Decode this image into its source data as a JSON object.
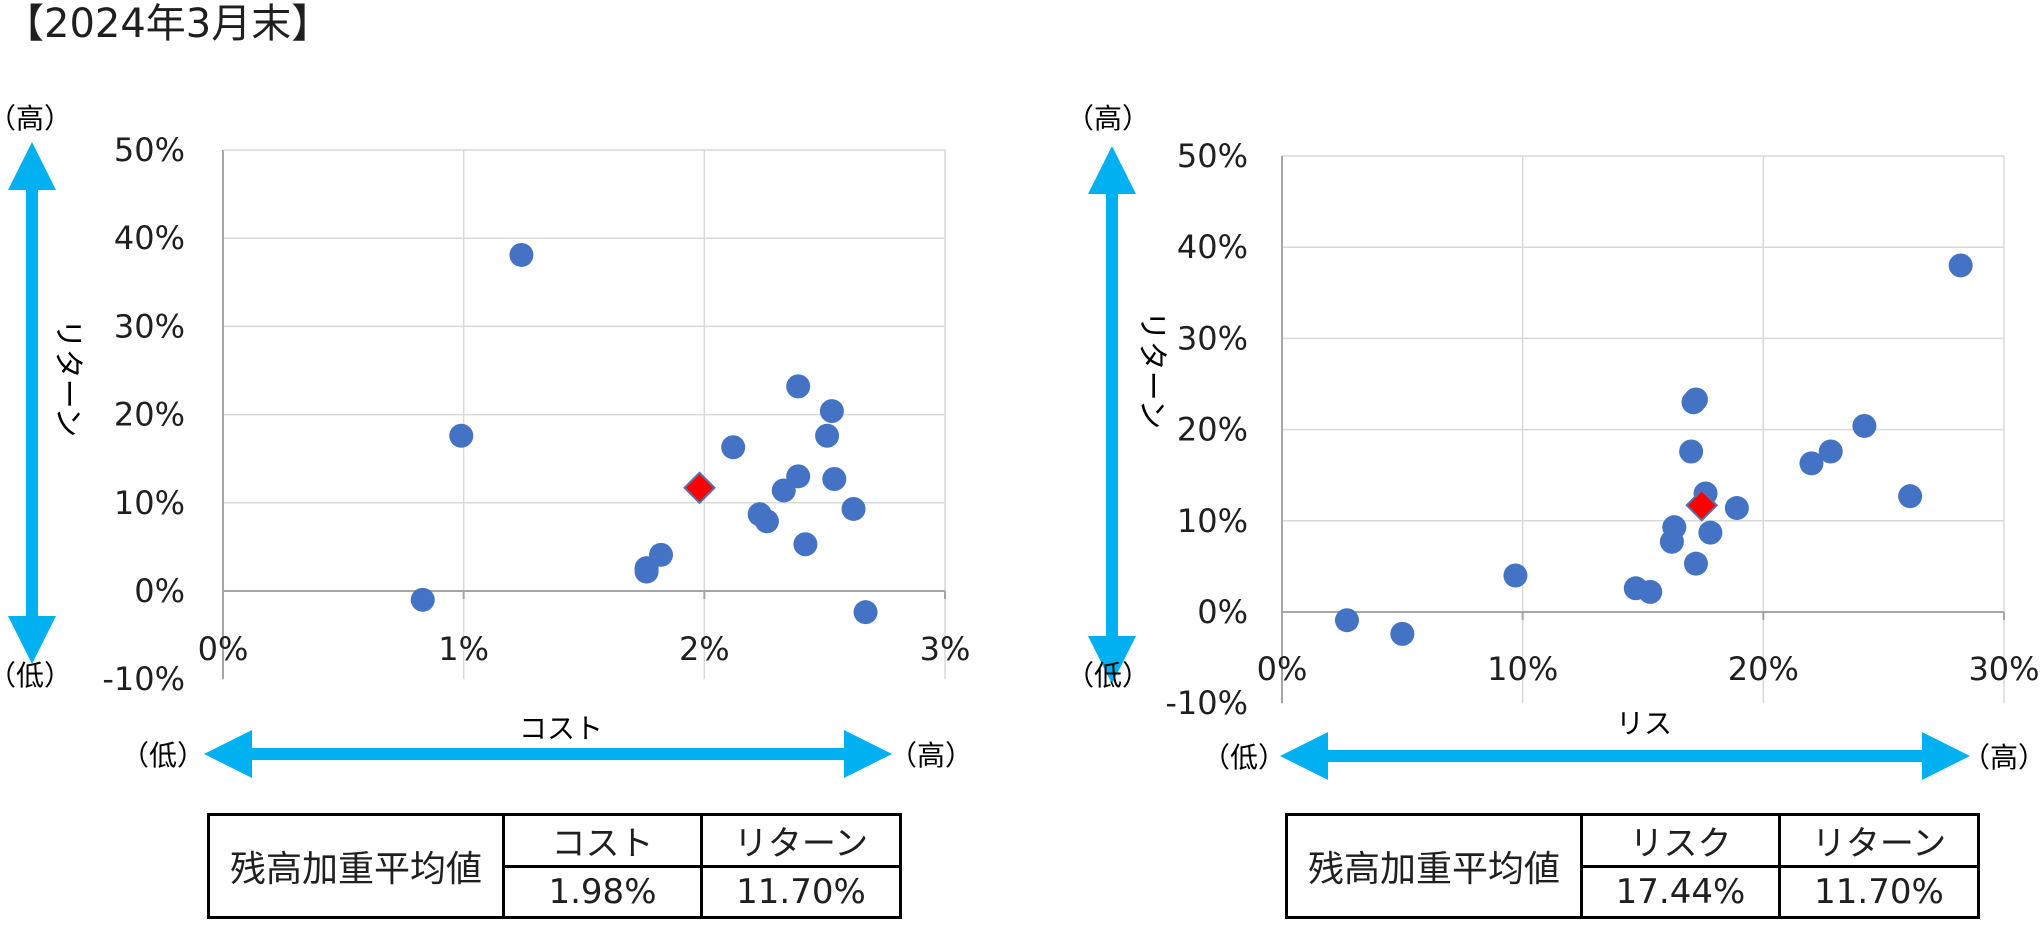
{
  "title": "【2024年3月末】",
  "direction_labels": {
    "high": "（高）",
    "low": "（低）"
  },
  "colors": {
    "points": "#4472c4",
    "average_marker": "#ff0000",
    "arrow": "#00b0f0",
    "grid": "#d9d9d9"
  },
  "chart_data": [
    {
      "type": "scatter",
      "title": "",
      "xlabel": "コスト",
      "ylabel": "リターン",
      "xlim": [
        0,
        0.03
      ],
      "ylim": [
        -0.1,
        0.5
      ],
      "x_ticks": [
        "0%",
        "1%",
        "2%",
        "3%"
      ],
      "y_ticks": [
        "50%",
        "40%",
        "30%",
        "20%",
        "10%",
        "0%",
        "-10%"
      ],
      "grid": true,
      "series": [
        {
          "values": [
            {
              "x": 0.0083,
              "y": -0.01
            },
            {
              "x": 0.0099,
              "y": 0.176
            },
            {
              "x": 0.0124,
              "y": 0.381
            },
            {
              "x": 0.0176,
              "y": 0.022
            },
            {
              "x": 0.0176,
              "y": 0.026
            },
            {
              "x": 0.0182,
              "y": 0.041
            },
            {
              "x": 0.0212,
              "y": 0.163
            },
            {
              "x": 0.0223,
              "y": 0.087
            },
            {
              "x": 0.0226,
              "y": 0.079
            },
            {
              "x": 0.0233,
              "y": 0.114
            },
            {
              "x": 0.0239,
              "y": 0.232
            },
            {
              "x": 0.0239,
              "y": 0.13
            },
            {
              "x": 0.0242,
              "y": 0.053
            },
            {
              "x": 0.0251,
              "y": 0.176
            },
            {
              "x": 0.0253,
              "y": 0.204
            },
            {
              "x": 0.0254,
              "y": 0.127
            },
            {
              "x": 0.0262,
              "y": 0.093
            },
            {
              "x": 0.0267,
              "y": -0.024
            }
          ]
        },
        {
          "marker": "diamond",
          "values": [
            {
              "x": 0.0198,
              "y": 0.117
            }
          ]
        }
      ]
    },
    {
      "type": "scatter",
      "title": "",
      "xlabel": "リス",
      "ylabel": "リターン",
      "xlim": [
        0,
        0.3
      ],
      "ylim": [
        -0.1,
        0.5
      ],
      "x_ticks": [
        "0%",
        "10%",
        "20%",
        "30%"
      ],
      "y_ticks": [
        "50%",
        "40%",
        "30%",
        "20%",
        "10%",
        "0%",
        "-10%"
      ],
      "grid": true,
      "series": [
        {
          "values": [
            {
              "x": 0.027,
              "y": -0.009
            },
            {
              "x": 0.05,
              "y": -0.024
            },
            {
              "x": 0.097,
              "y": 0.04
            },
            {
              "x": 0.147,
              "y": 0.026
            },
            {
              "x": 0.153,
              "y": 0.022
            },
            {
              "x": 0.162,
              "y": 0.077
            },
            {
              "x": 0.163,
              "y": 0.093
            },
            {
              "x": 0.17,
              "y": 0.176
            },
            {
              "x": 0.171,
              "y": 0.23
            },
            {
              "x": 0.172,
              "y": 0.233
            },
            {
              "x": 0.172,
              "y": 0.053
            },
            {
              "x": 0.176,
              "y": 0.13
            },
            {
              "x": 0.178,
              "y": 0.087
            },
            {
              "x": 0.189,
              "y": 0.114
            },
            {
              "x": 0.22,
              "y": 0.163
            },
            {
              "x": 0.228,
              "y": 0.176
            },
            {
              "x": 0.242,
              "y": 0.204
            },
            {
              "x": 0.261,
              "y": 0.127
            },
            {
              "x": 0.282,
              "y": 0.38
            }
          ]
        },
        {
          "marker": "diamond",
          "values": [
            {
              "x": 0.1744,
              "y": 0.117
            }
          ]
        }
      ]
    }
  ],
  "summary_tables": [
    {
      "row_header": "残高加重平均値",
      "col1_label": "コスト",
      "col2_label": "リターン",
      "col1_value": "1.98%",
      "col2_value": "11.70%"
    },
    {
      "row_header": "残高加重平均値",
      "col1_label": "リスク",
      "col2_label": "リターン",
      "col1_value": "17.44%",
      "col2_value": "11.70%"
    }
  ]
}
